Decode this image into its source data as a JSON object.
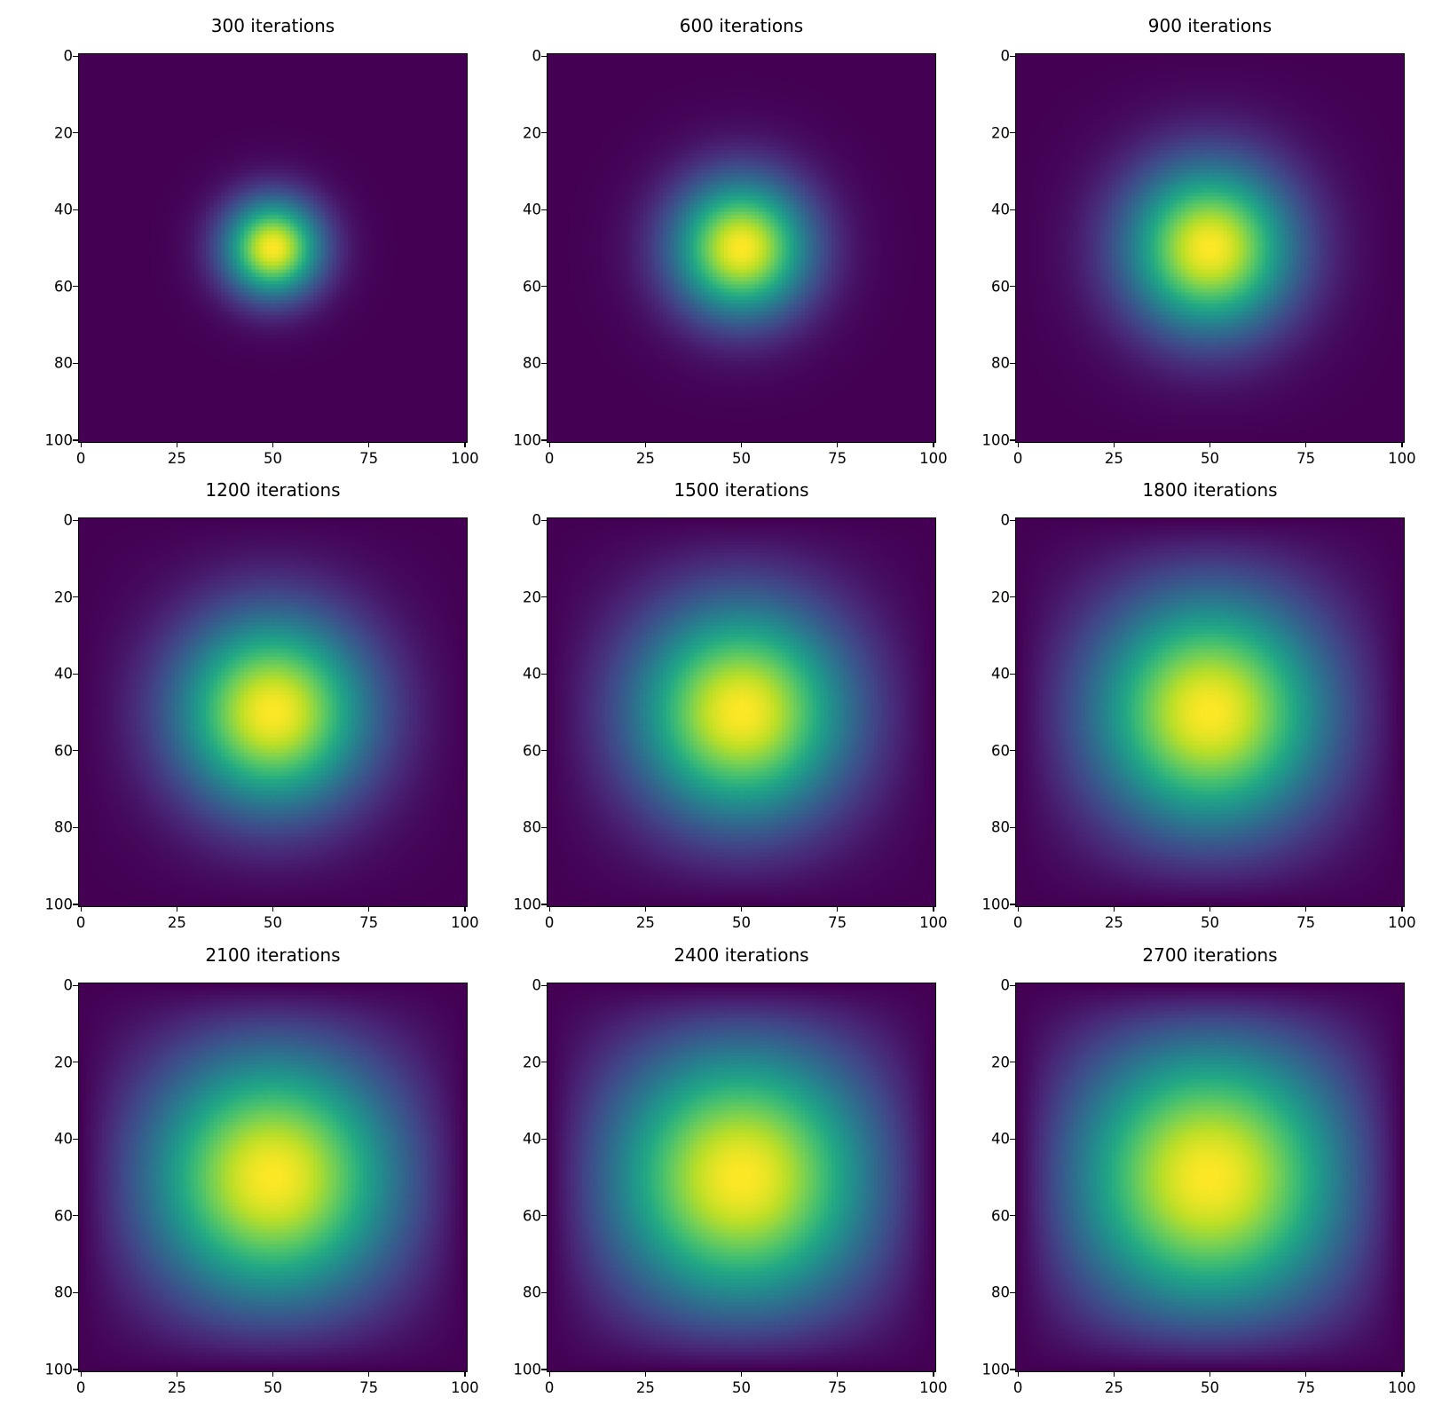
{
  "chart_data": {
    "type": "heatmap",
    "colormap": "viridis",
    "layout": "3x3 grid",
    "grid_size": [
      101,
      101
    ],
    "center": [
      50,
      50
    ],
    "description_model": "2D diffusion from central source, zero boundary, each panel normalized to own max",
    "panels": [
      {
        "title": "300 iterations",
        "iterations": 300
      },
      {
        "title": "600 iterations",
        "iterations": 600
      },
      {
        "title": "900 iterations",
        "iterations": 900
      },
      {
        "title": "1200 iterations",
        "iterations": 1200
      },
      {
        "title": "1500 iterations",
        "iterations": 1500
      },
      {
        "title": "1800 iterations",
        "iterations": 1800
      },
      {
        "title": "2100 iterations",
        "iterations": 2100
      },
      {
        "title": "2400 iterations",
        "iterations": 2400
      },
      {
        "title": "2700 iterations",
        "iterations": 2700
      }
    ],
    "x_ticks": [
      "0",
      "25",
      "50",
      "75",
      "100"
    ],
    "x_tick_values": [
      0,
      25,
      50,
      75,
      100
    ],
    "y_ticks": [
      "0",
      "20",
      "40",
      "60",
      "80",
      "100"
    ],
    "y_tick_values": [
      0,
      20,
      40,
      60,
      80,
      100
    ],
    "xlim": [
      -0.5,
      100.5
    ],
    "ylim": [
      100.5,
      -0.5
    ],
    "xlabel": "",
    "ylabel": "",
    "grid": false
  }
}
